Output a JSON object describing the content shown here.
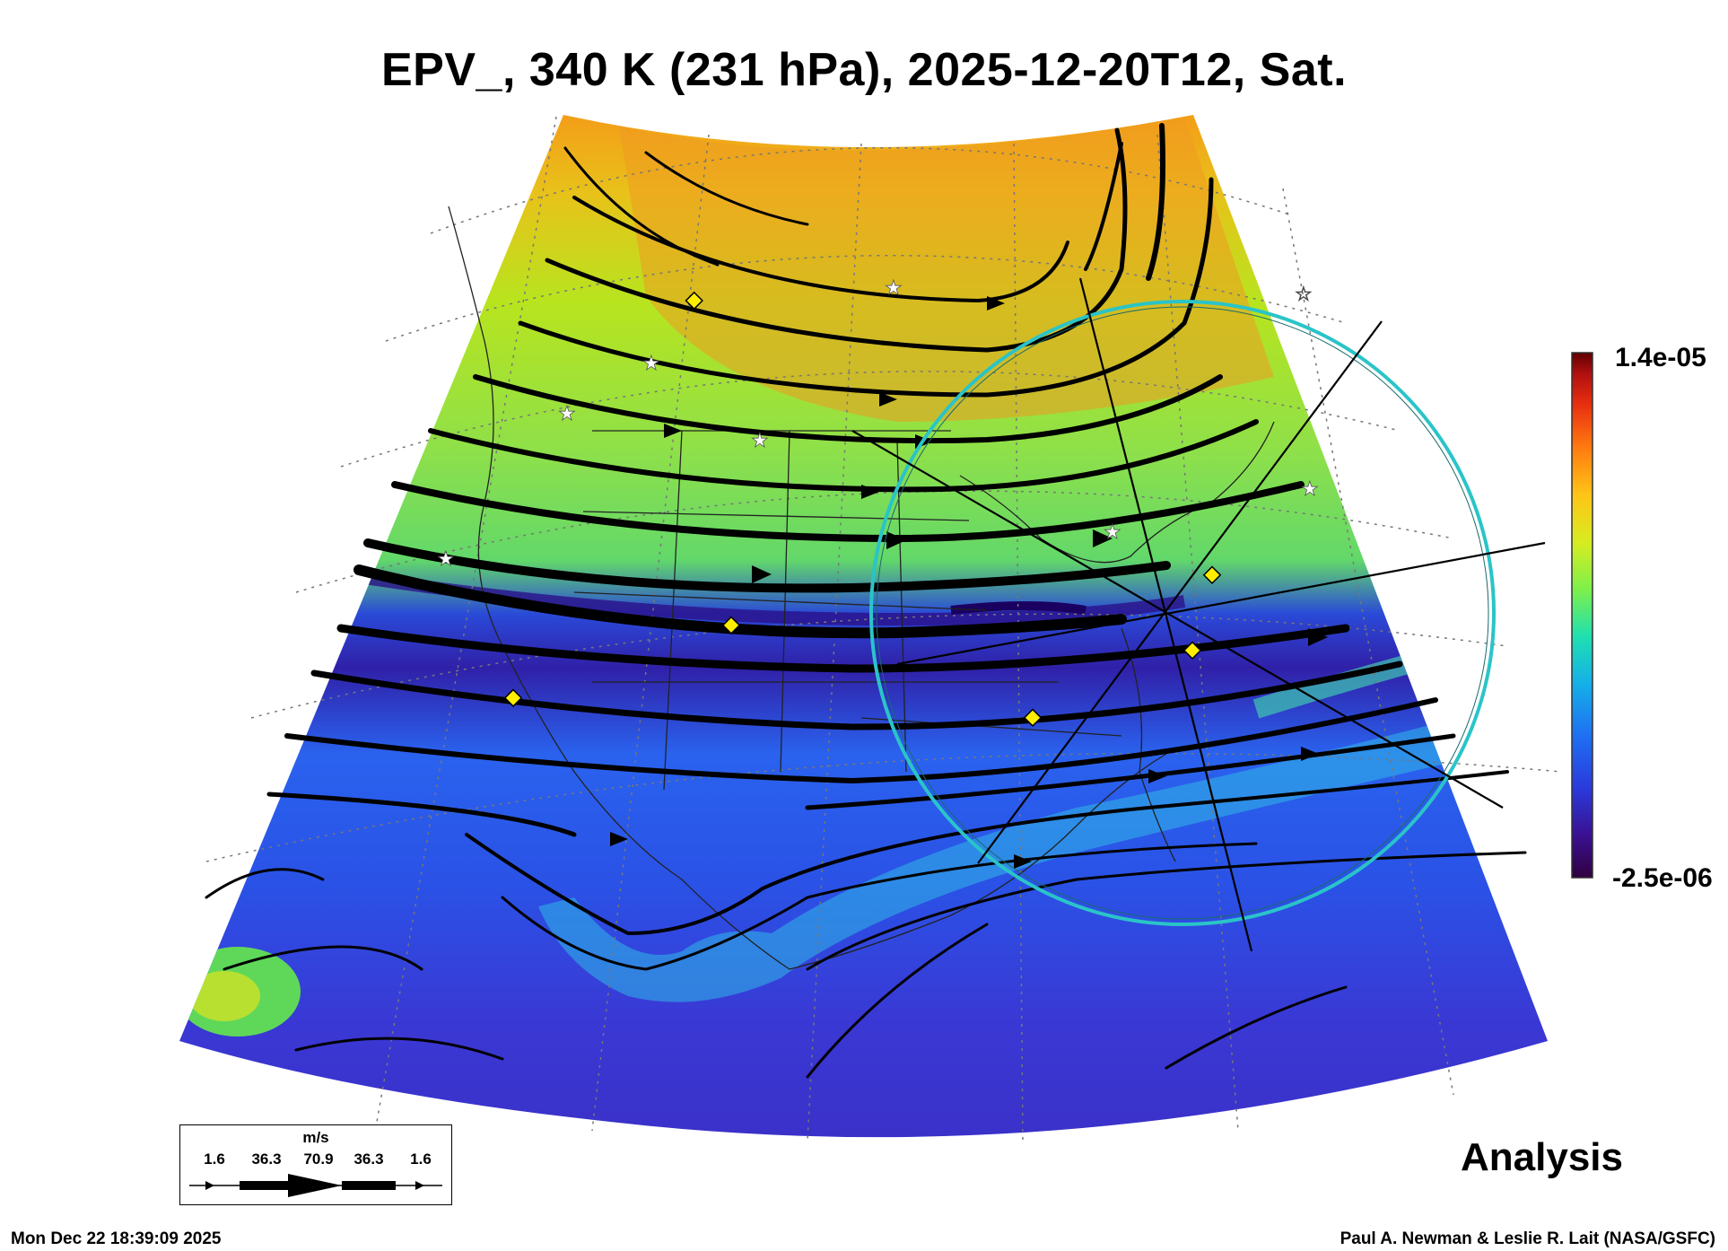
{
  "title": "EPV_, 340 K (231 hPa), 2025-12-20T12, Sat.",
  "colorbar": {
    "max_label": "1.4e-05",
    "min_label": "-2.5e-06",
    "max_value": 1.4e-05,
    "min_value": -2.5e-06,
    "colors": [
      "#300040",
      "#3a1090",
      "#2a3adc",
      "#1f6ff2",
      "#15b0e8",
      "#1fe0b0",
      "#7ef04a",
      "#d8ec20",
      "#ffc417",
      "#ff7a10",
      "#e83010",
      "#b01010",
      "#600000"
    ]
  },
  "legend": {
    "unit": "m/s",
    "values": [
      "1.6",
      "36.3",
      "70.9",
      "36.3",
      "1.6"
    ]
  },
  "analysis_label": "Analysis",
  "timestamp": "Mon Dec 22 18:39:09 2025",
  "credit": "Paul A. Newman & Leslie R. Lait (NASA/GSFC)",
  "map": {
    "field": "EPV_",
    "level": "340 K",
    "region": "North America",
    "projection": "conic",
    "overlays": [
      "wind-streamlines",
      "coastlines",
      "state-boundaries",
      "lat-lon-grid",
      "cross-section-circle",
      "cross-section-lines",
      "station-markers"
    ],
    "circle_color": "#2ac4c8",
    "marker_colors": {
      "diamond": "#ffee00",
      "star": "#ffffff"
    }
  }
}
